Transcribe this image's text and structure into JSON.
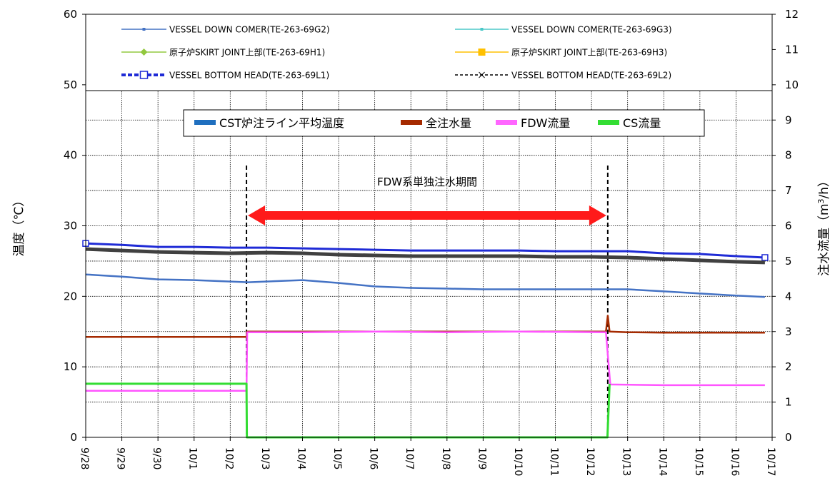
{
  "chart_data": {
    "type": "line",
    "y_left": {
      "label": "温度（℃）",
      "range": [
        0,
        60
      ],
      "ticks": [
        "0",
        "10",
        "20",
        "30",
        "40",
        "50",
        "60"
      ]
    },
    "y_right": {
      "label": "注水流量（m3/h）",
      "range": [
        0,
        12
      ],
      "ticks": [
        "0",
        "1",
        "2",
        "3",
        "4",
        "5",
        "6",
        "7",
        "8",
        "9",
        "10",
        "11",
        "12"
      ]
    },
    "x_axis": {
      "range": [
        0,
        19
      ],
      "tick_labels": [
        "9/28",
        "9/29",
        "9/30",
        "10/1",
        "10/2",
        "10/3",
        "10/4",
        "10/5",
        "10/6",
        "10/7",
        "10/8",
        "10/9",
        "10/10",
        "10/11",
        "10/12",
        "10/13",
        "10/14",
        "10/15",
        "10/16",
        "10/17"
      ]
    },
    "grid": true,
    "legend_top": [
      {
        "name": "VESSEL DOWN COMER(TE-263-69G2)",
        "color": "#4472C4",
        "marker": "dash"
      },
      {
        "name": "VESSEL DOWN COMER(TE-263-69G3)",
        "color": "#4BC8C8",
        "marker": "dash"
      },
      {
        "name": "原子炉SKIRT JOINT上部(TE-263-69H1)",
        "color": "#92C83E",
        "marker": "diamond"
      },
      {
        "name": "原子炉SKIRT JOINT上部(TE-263-69H3)",
        "color": "#FFC000",
        "marker": "square"
      },
      {
        "name": "VESSEL BOTTOM HEAD(TE-263-69L1)",
        "color": "#1F2BD6",
        "marker": "open-square"
      },
      {
        "name": "VESSEL BOTTOM HEAD(TE-263-69L2)",
        "color": "#000000",
        "marker": "x"
      }
    ],
    "legend_bottom": [
      {
        "name": "CST炉注ライン平均温度",
        "color": "#1F6FBF"
      },
      {
        "name": "全注水量",
        "color": "#A52A00"
      },
      {
        "name": "FDW流量",
        "color": "#FF66FF"
      },
      {
        "name": "CS流量",
        "color": "#33DD33"
      }
    ],
    "annotation": {
      "text": "FDW系単独注水期間",
      "x_start": 4.45,
      "x_end": 14.45
    },
    "series": [
      {
        "name": "VESSEL BOTTOM HEAD(TE-263-69L1)",
        "axis": "left",
        "color": "#1F2BD6",
        "width": 3,
        "points": [
          [
            0,
            27.5
          ],
          [
            1,
            27.3
          ],
          [
            2,
            27.0
          ],
          [
            3,
            27.0
          ],
          [
            4,
            26.9
          ],
          [
            5,
            26.9
          ],
          [
            6,
            26.8
          ],
          [
            7,
            26.7
          ],
          [
            8,
            26.6
          ],
          [
            9,
            26.5
          ],
          [
            10,
            26.5
          ],
          [
            11,
            26.5
          ],
          [
            12,
            26.5
          ],
          [
            13,
            26.4
          ],
          [
            14,
            26.4
          ],
          [
            15,
            26.4
          ],
          [
            16,
            26.1
          ],
          [
            17,
            26.0
          ],
          [
            18,
            25.7
          ],
          [
            18.8,
            25.5
          ]
        ]
      },
      {
        "name": "VESSEL BOTTOM HEAD(TE-263-69L2)",
        "axis": "left",
        "color": "#404040",
        "width": 5,
        "points": [
          [
            0,
            26.7
          ],
          [
            1,
            26.5
          ],
          [
            2,
            26.3
          ],
          [
            3,
            26.2
          ],
          [
            4,
            26.1
          ],
          [
            5,
            26.2
          ],
          [
            6,
            26.1
          ],
          [
            7,
            25.9
          ],
          [
            8,
            25.8
          ],
          [
            9,
            25.7
          ],
          [
            10,
            25.7
          ],
          [
            11,
            25.7
          ],
          [
            12,
            25.7
          ],
          [
            13,
            25.6
          ],
          [
            14,
            25.6
          ],
          [
            15,
            25.5
          ],
          [
            16,
            25.3
          ],
          [
            17,
            25.1
          ],
          [
            18,
            24.9
          ],
          [
            18.8,
            24.8
          ]
        ]
      },
      {
        "name": "VESSEL DOWN COMER(TE-263-69G2)",
        "axis": "left",
        "color": "#4472C4",
        "width": 2.5,
        "points": [
          [
            0,
            23.1
          ],
          [
            1,
            22.8
          ],
          [
            2,
            22.4
          ],
          [
            3,
            22.3
          ],
          [
            4,
            22.1
          ],
          [
            4.5,
            22.0
          ],
          [
            5,
            22.1
          ],
          [
            6,
            22.3
          ],
          [
            7,
            21.9
          ],
          [
            8,
            21.4
          ],
          [
            9,
            21.2
          ],
          [
            10,
            21.1
          ],
          [
            11,
            21.0
          ],
          [
            12,
            21.0
          ],
          [
            13,
            21.0
          ],
          [
            14,
            21.0
          ],
          [
            15,
            21.0
          ],
          [
            16,
            20.7
          ],
          [
            17,
            20.4
          ],
          [
            18,
            20.1
          ],
          [
            18.8,
            19.9
          ]
        ]
      },
      {
        "name": "全注水量",
        "axis": "right",
        "color": "#A52A00",
        "width": 2.5,
        "points": [
          [
            0,
            2.85
          ],
          [
            1,
            2.85
          ],
          [
            2,
            2.85
          ],
          [
            3,
            2.85
          ],
          [
            4.45,
            2.85
          ],
          [
            4.46,
            3.0
          ],
          [
            14.4,
            3.0
          ],
          [
            14.45,
            3.45
          ],
          [
            14.5,
            3.0
          ],
          [
            15,
            2.98
          ],
          [
            16,
            2.97
          ],
          [
            17,
            2.97
          ],
          [
            18,
            2.97
          ],
          [
            18.8,
            2.97
          ]
        ]
      },
      {
        "name": "FDW流量",
        "axis": "right",
        "color": "#FF55FF",
        "width": 2.5,
        "points": [
          [
            0,
            1.32
          ],
          [
            1,
            1.32
          ],
          [
            2,
            1.32
          ],
          [
            3,
            1.32
          ],
          [
            4.45,
            1.32
          ],
          [
            4.47,
            2.98
          ],
          [
            6,
            2.98
          ],
          [
            8,
            3.0
          ],
          [
            10,
            2.98
          ],
          [
            12,
            3.0
          ],
          [
            14.4,
            2.98
          ],
          [
            14.52,
            1.5
          ],
          [
            16,
            1.48
          ],
          [
            17,
            1.48
          ],
          [
            18,
            1.48
          ],
          [
            18.8,
            1.48
          ]
        ]
      },
      {
        "name": "CS流量",
        "axis": "right",
        "color": "#33DD33",
        "width": 3,
        "points": [
          [
            0,
            1.52
          ],
          [
            1,
            1.52
          ],
          [
            2,
            1.52
          ],
          [
            3,
            1.52
          ],
          [
            4.45,
            1.52
          ],
          [
            4.46,
            0
          ],
          [
            14.44,
            0
          ],
          [
            14.5,
            1.52
          ]
        ]
      }
    ]
  }
}
